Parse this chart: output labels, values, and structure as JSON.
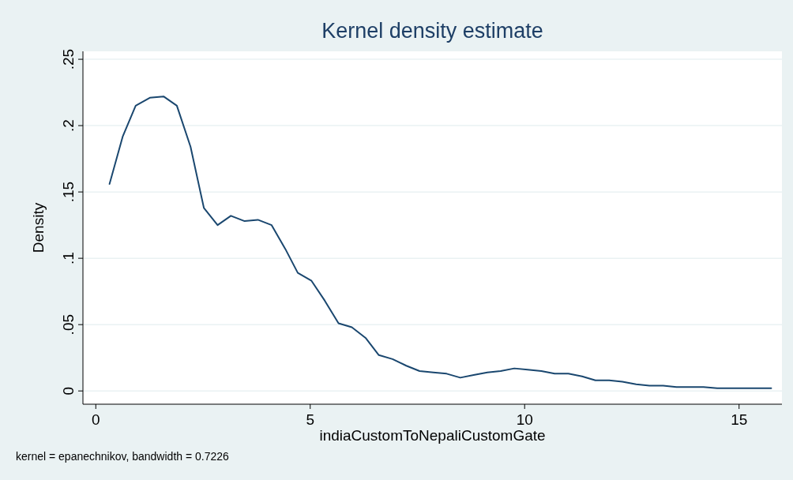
{
  "chart_data": {
    "type": "line",
    "title": "Kernel density estimate",
    "xlabel": "indiaCustomToNepaliCustomGate",
    "ylabel": "Density",
    "annotations": [
      "kernel = epanechnikov, bandwidth = 0.7226"
    ],
    "x": [
      0.32,
      0.63,
      0.93,
      1.26,
      1.58,
      1.89,
      2.21,
      2.52,
      2.84,
      3.15,
      3.47,
      3.78,
      4.1,
      4.42,
      4.71,
      5.03,
      5.34,
      5.66,
      5.97,
      6.29,
      6.6,
      6.92,
      7.24,
      7.55,
      7.87,
      8.18,
      8.5,
      8.81,
      9.13,
      9.44,
      9.76,
      10.07,
      10.39,
      10.7,
      11.02,
      11.34,
      11.65,
      11.97,
      12.28,
      12.6,
      12.91,
      13.23,
      13.54,
      13.86,
      14.17,
      14.49,
      14.81,
      15.12,
      15.44,
      15.75
    ],
    "series": [
      {
        "color": "#1a476f",
        "values": [
          0.156,
          0.192,
          0.215,
          0.221,
          0.222,
          0.215,
          0.184,
          0.138,
          0.125,
          0.132,
          0.128,
          0.129,
          0.125,
          0.107,
          0.089,
          0.083,
          0.068,
          0.051,
          0.048,
          0.04,
          0.027,
          0.024,
          0.019,
          0.015,
          0.014,
          0.013,
          0.01,
          0.012,
          0.014,
          0.015,
          0.017,
          0.016,
          0.015,
          0.013,
          0.013,
          0.011,
          0.008,
          0.008,
          0.007,
          0.005,
          0.004,
          0.004,
          0.003,
          0.003,
          0.003,
          0.002,
          0.002,
          0.002,
          0.002,
          0.002
        ]
      }
    ],
    "xlim": [
      -0.3,
      16.0
    ],
    "xticks": [
      0,
      5,
      10,
      15
    ],
    "ylim": [
      -0.01,
      0.256
    ],
    "yticks": [
      0,
      {
        "value": 0.05,
        "label": ".05"
      },
      {
        "value": 0.1,
        "label": ".1"
      },
      {
        "value": 0.15,
        "label": ".15"
      },
      {
        "value": 0.2,
        "label": ".2"
      },
      {
        "value": 0.25,
        "label": ".25"
      }
    ],
    "grid": "y",
    "marker": "none",
    "line_style": "solid"
  }
}
